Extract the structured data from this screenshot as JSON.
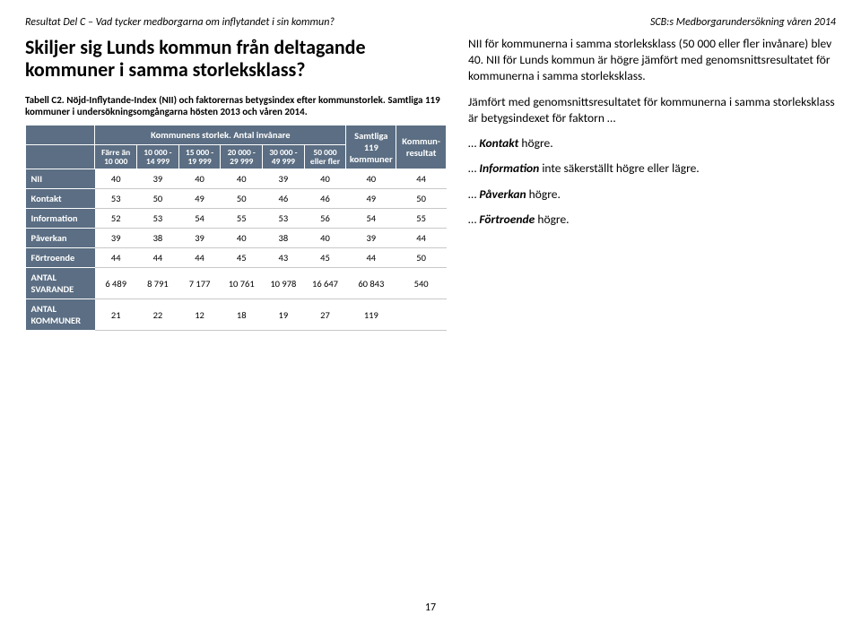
{
  "header": {
    "left": "Resultat Del C – Vad tycker medborgarna om inflytandet i sin kommun?",
    "right": "SCB:s Medborgarundersökning våren 2014"
  },
  "title": "Skiljer sig Lunds kommun från deltagande kommuner i samma storleksklass?",
  "table_caption_line1": "Tabell C2. Nöjd-Inflytande-Index (NII) och faktorernas betygsindex efter kommunstorlek. Samtliga 119 kommuner i undersökningsomgångarna hösten 2013 och våren 2014.",
  "table": {
    "span_header": "Kommunens storlek. Antal invånare",
    "col_headers": [
      "",
      "Färre än 10 000",
      "10 000 - 14 999",
      "15 000 - 19 999",
      "20 000 - 29 999",
      "30 000 - 49 999",
      "50 000 eller fler",
      "Samtliga 119 kommuner",
      "Kommun-resultat"
    ],
    "rows": [
      {
        "label": "NII",
        "cells": [
          "40",
          "39",
          "40",
          "40",
          "39",
          "40",
          "40",
          "44"
        ]
      },
      {
        "label": "Kontakt",
        "cells": [
          "53",
          "50",
          "49",
          "50",
          "46",
          "46",
          "49",
          "50"
        ]
      },
      {
        "label": "Information",
        "cells": [
          "52",
          "53",
          "54",
          "55",
          "53",
          "56",
          "54",
          "55"
        ]
      },
      {
        "label": "Påverkan",
        "cells": [
          "39",
          "38",
          "39",
          "40",
          "38",
          "40",
          "39",
          "44"
        ]
      },
      {
        "label": "Förtroende",
        "cells": [
          "44",
          "44",
          "44",
          "45",
          "43",
          "45",
          "44",
          "50"
        ]
      },
      {
        "label": "ANTAL SVARANDE",
        "cells": [
          "6 489",
          "8 791",
          "7 177",
          "10 761",
          "10 978",
          "16 647",
          "60 843",
          "540"
        ]
      },
      {
        "label": "ANTAL KOMMUNER",
        "cells": [
          "21",
          "22",
          "12",
          "18",
          "19",
          "27",
          "119",
          ""
        ]
      }
    ]
  },
  "right_text": {
    "p1": "NII för kommunerna i samma storleksklass (50 000 eller fler invånare) blev 40. NII för Lunds kommun är högre jämfört med genomsnittsresultatet för kommunerna i samma storleksklass.",
    "p2": "Jämfört med genomsnittsresultatet för kommunerna i samma storleksklass är betygsindexet för faktorn …",
    "b1_pre": "… ",
    "b1_em": "Kontakt",
    "b1_post": " högre.",
    "b2_pre": "… ",
    "b2_em": "Information",
    "b2_post": " inte säkerställt högre eller lägre.",
    "b3_pre": "… ",
    "b3_em": "Påverkan",
    "b3_post": " högre.",
    "b4_pre": "… ",
    "b4_em": "Förtroende",
    "b4_post": " högre."
  },
  "page_number": "17"
}
